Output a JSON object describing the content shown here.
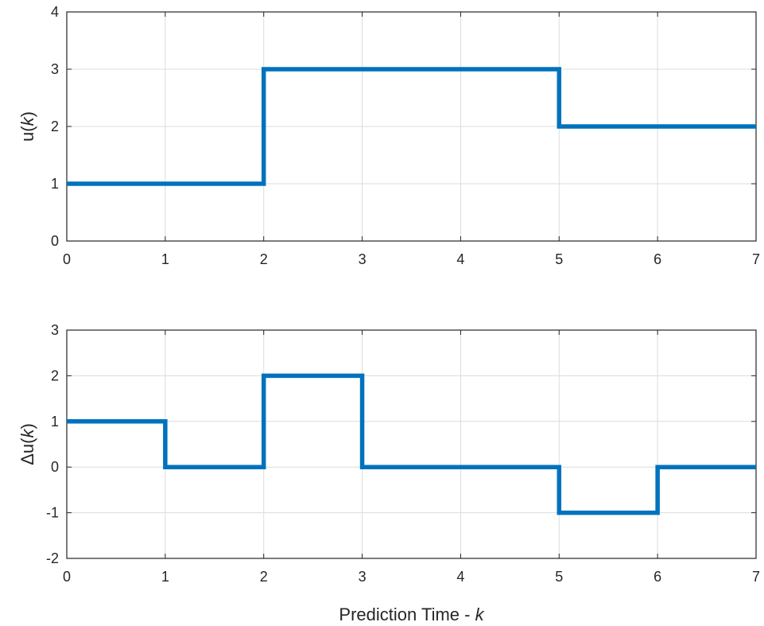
{
  "chart_data": [
    {
      "type": "line",
      "step": "post",
      "title": "",
      "xlabel": "",
      "ylabel": "u(k)",
      "xlim": [
        0,
        7
      ],
      "ylim": [
        0,
        4
      ],
      "xticks": [
        0,
        1,
        2,
        3,
        4,
        5,
        6,
        7
      ],
      "yticks": [
        0,
        1,
        2,
        3,
        4
      ],
      "grid": true,
      "series": [
        {
          "x": [
            0,
            1,
            2,
            3,
            4,
            5,
            6,
            7
          ],
          "values": [
            1,
            1,
            3,
            3,
            3,
            2,
            2,
            2
          ]
        }
      ]
    },
    {
      "type": "line",
      "step": "post",
      "title": "",
      "xlabel": "Prediction Time - k",
      "ylabel": "Δu(k)",
      "xlim": [
        0,
        7
      ],
      "ylim": [
        -2,
        3
      ],
      "xticks": [
        0,
        1,
        2,
        3,
        4,
        5,
        6,
        7
      ],
      "yticks": [
        -2,
        -1,
        0,
        1,
        2,
        3
      ],
      "grid": true,
      "series": [
        {
          "x": [
            0,
            1,
            2,
            3,
            4,
            5,
            6,
            7
          ],
          "values": [
            1,
            0,
            2,
            0,
            0,
            -1,
            0,
            0
          ]
        }
      ]
    }
  ],
  "colors": {
    "series": "#0072BD",
    "axes": "#262626",
    "grid": "#dcdcdc"
  }
}
